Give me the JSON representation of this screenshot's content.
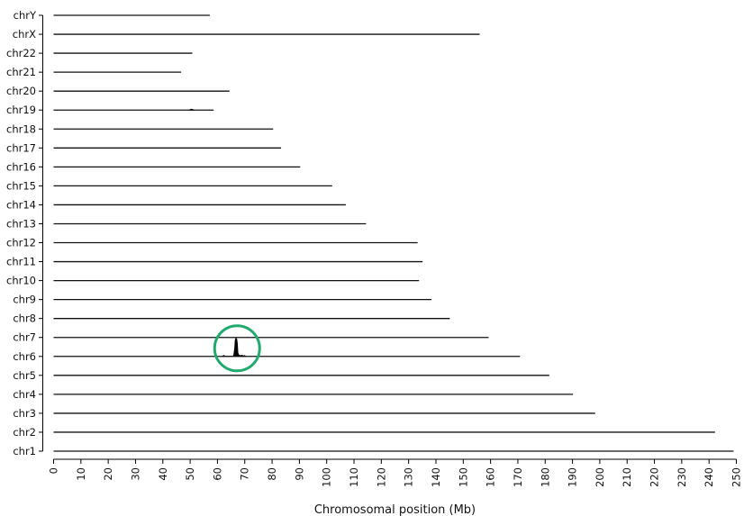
{
  "chart_data": {
    "type": "line",
    "xlabel": "Chromosomal position (Mb)",
    "xlim": [
      0,
      250
    ],
    "xticks": [
      0,
      10,
      20,
      30,
      40,
      50,
      60,
      70,
      80,
      90,
      100,
      110,
      120,
      130,
      140,
      150,
      160,
      170,
      180,
      190,
      200,
      210,
      220,
      230,
      240,
      250
    ],
    "grid": false,
    "legend": "none",
    "chromosomes": [
      {
        "name": "chrY",
        "length": 57.2
      },
      {
        "name": "chrX",
        "length": 156.0
      },
      {
        "name": "chr22",
        "length": 50.8
      },
      {
        "name": "chr21",
        "length": 46.7
      },
      {
        "name": "chr20",
        "length": 64.4
      },
      {
        "name": "chr19",
        "length": 58.6
      },
      {
        "name": "chr18",
        "length": 80.4
      },
      {
        "name": "chr17",
        "length": 83.3
      },
      {
        "name": "chr16",
        "length": 90.3
      },
      {
        "name": "chr15",
        "length": 102.0
      },
      {
        "name": "chr14",
        "length": 107.0
      },
      {
        "name": "chr13",
        "length": 114.4
      },
      {
        "name": "chr12",
        "length": 133.3
      },
      {
        "name": "chr11",
        "length": 135.1
      },
      {
        "name": "chr10",
        "length": 133.8
      },
      {
        "name": "chr9",
        "length": 138.4
      },
      {
        "name": "chr8",
        "length": 145.1
      },
      {
        "name": "chr7",
        "length": 159.3
      },
      {
        "name": "chr6",
        "length": 170.8
      },
      {
        "name": "chr5",
        "length": 181.5
      },
      {
        "name": "chr4",
        "length": 190.2
      },
      {
        "name": "chr3",
        "length": 198.3
      },
      {
        "name": "chr2",
        "length": 242.2
      },
      {
        "name": "chr1",
        "length": 249.0
      }
    ],
    "signal_peaks": [
      {
        "chromosome": "chr6",
        "profile": [
          [
            61.8,
            0.0
          ],
          [
            62.3,
            0.06
          ],
          [
            62.8,
            0.0
          ],
          [
            65.8,
            0.0
          ],
          [
            66.0,
            0.12
          ],
          [
            66.3,
            0.45
          ],
          [
            66.5,
            0.9
          ],
          [
            66.7,
            1.0
          ],
          [
            66.9,
            1.0
          ],
          [
            67.1,
            0.95
          ],
          [
            67.3,
            0.7
          ],
          [
            67.5,
            0.2
          ],
          [
            67.8,
            0.08
          ],
          [
            68.3,
            0.05
          ],
          [
            69.0,
            0.06
          ],
          [
            69.5,
            0.03
          ],
          [
            70.0,
            0.05
          ],
          [
            70.3,
            0.0
          ]
        ]
      },
      {
        "chromosome": "chr19",
        "profile": [
          [
            49.5,
            0.0
          ],
          [
            50.5,
            0.05
          ],
          [
            51.5,
            0.0
          ]
        ]
      }
    ],
    "annotations": [
      {
        "type": "circle",
        "color": "#22aa6e",
        "chromosome": "chr6",
        "x_center": 67.2
      }
    ]
  }
}
